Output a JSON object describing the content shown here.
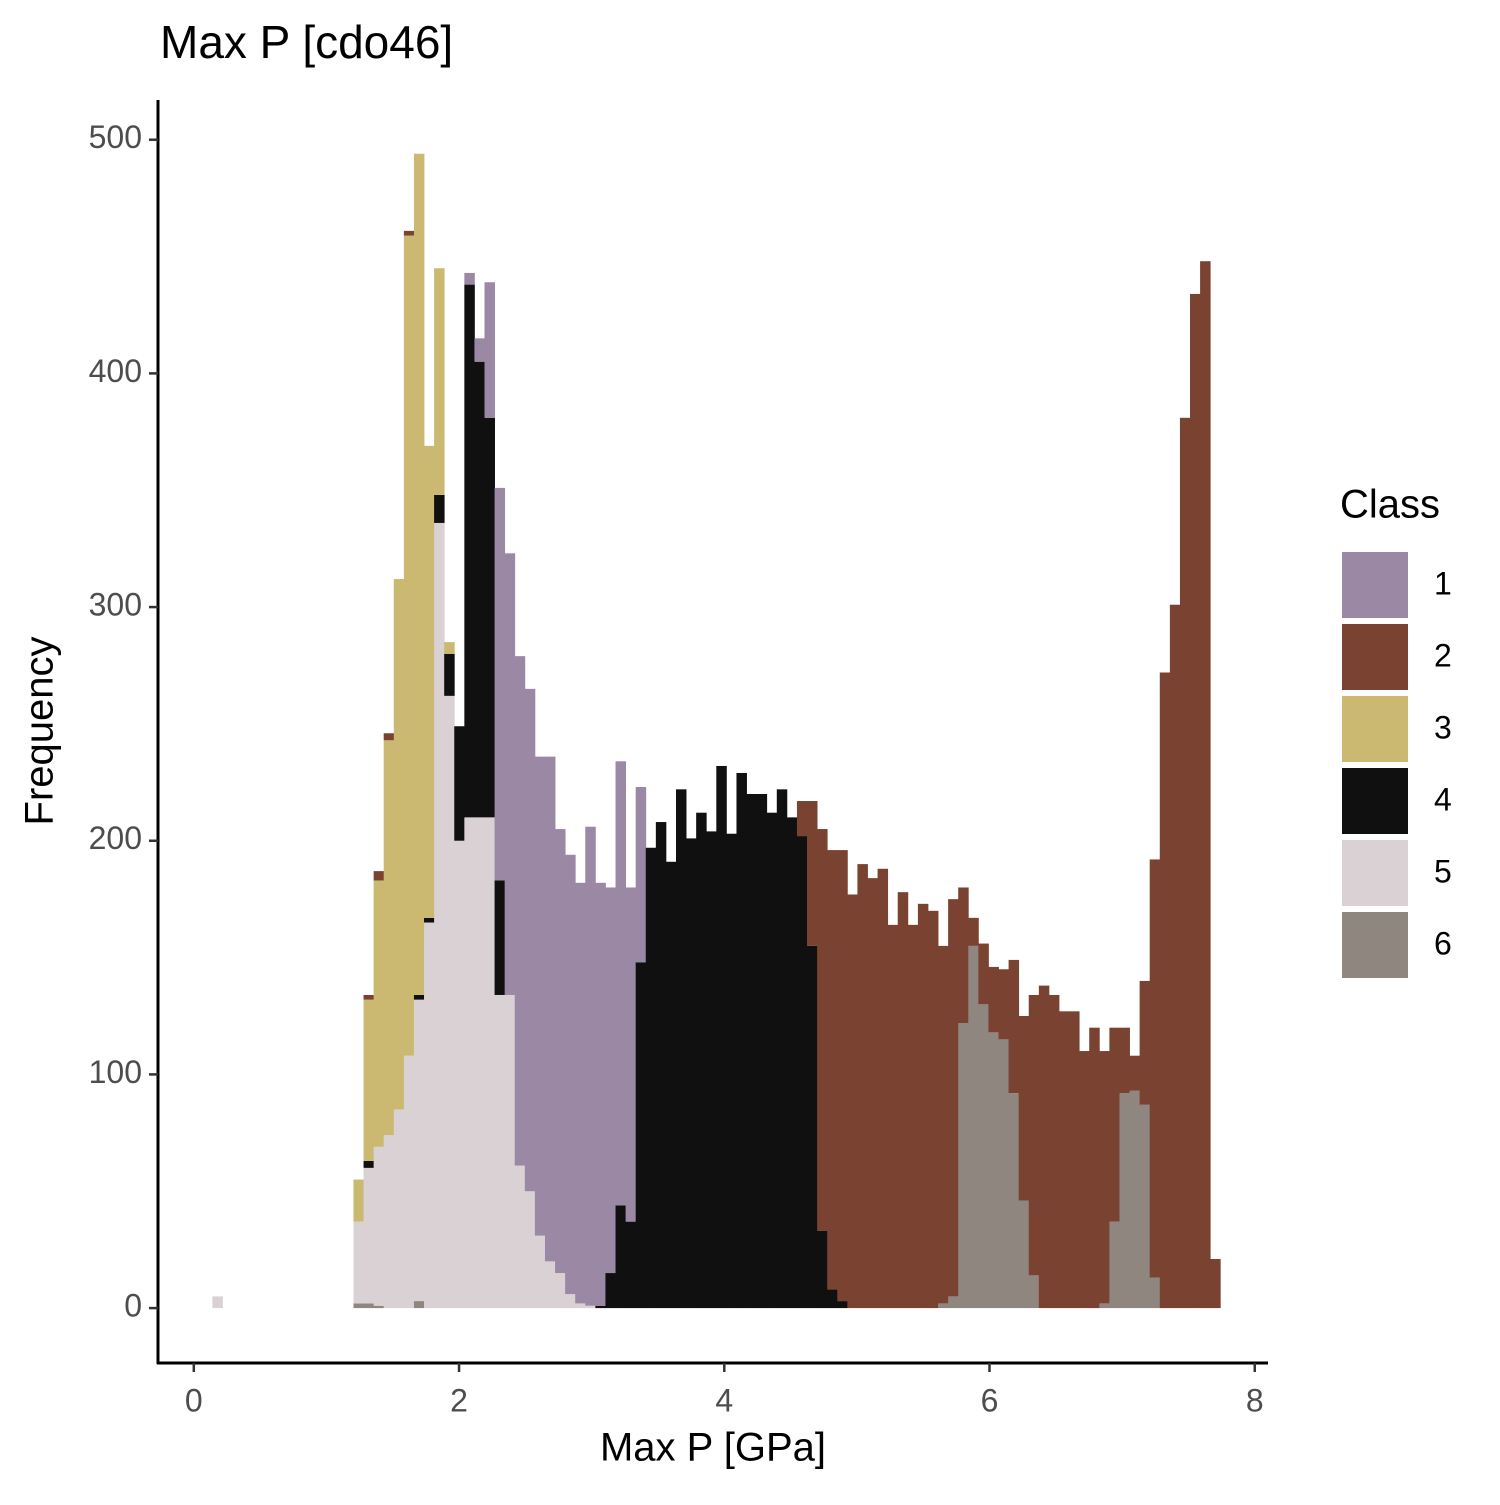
{
  "chart_data": {
    "type": "histogram",
    "title": "Max P [cdo46]",
    "x_label": "Max P [GPa]",
    "y_label": "Frequency",
    "legend_title": "Class",
    "stacked": true,
    "legend_position": "right",
    "bins": [
      0.14,
      0.216,
      0.292,
      0.368,
      0.444,
      0.52,
      0.596,
      0.672,
      0.748,
      0.824,
      0.9,
      0.976,
      1.052,
      1.128,
      1.204,
      1.28,
      1.356,
      1.432,
      1.508,
      1.584,
      1.66,
      1.736,
      1.812,
      1.888,
      1.964,
      2.04,
      2.116,
      2.192,
      2.268,
      2.344,
      2.42,
      2.496,
      2.572,
      2.648,
      2.724,
      2.8,
      2.876,
      2.952,
      3.028,
      3.104,
      3.18,
      3.256,
      3.332,
      3.408,
      3.484,
      3.56,
      3.636,
      3.712,
      3.788,
      3.864,
      3.94,
      4.016,
      4.092,
      4.168,
      4.244,
      4.32,
      4.396,
      4.472,
      4.548,
      4.624,
      4.7,
      4.776,
      4.852,
      4.928,
      5.004,
      5.08,
      5.156,
      5.232,
      5.308,
      5.384,
      5.46,
      5.536,
      5.612,
      5.688,
      5.764,
      5.84,
      5.916,
      5.992,
      6.068,
      6.144,
      6.22,
      6.296,
      6.372,
      6.448,
      6.524,
      6.6,
      6.676,
      6.752,
      6.828,
      6.904,
      6.98,
      7.056,
      7.132,
      7.208,
      7.284,
      7.36,
      7.436,
      7.512,
      7.588,
      7.664,
      7.74
    ],
    "series": [
      {
        "name": "1",
        "color": "#9a88a5",
        "values": [
          0,
          0,
          0,
          0,
          0,
          0,
          0,
          0,
          0,
          0,
          0,
          0,
          0,
          0,
          0,
          0,
          0,
          0,
          0,
          0,
          0,
          0,
          0,
          0,
          0,
          5,
          10,
          58,
          168,
          189,
          218,
          215,
          205,
          216,
          190,
          188,
          180,
          205,
          181,
          165,
          190,
          143,
          75,
          0,
          0,
          0,
          0,
          0,
          0,
          0,
          0,
          0,
          0,
          0,
          0,
          0,
          0,
          0,
          0,
          0,
          0,
          0,
          0,
          0,
          0,
          0,
          0,
          0,
          0,
          0,
          0,
          0,
          0,
          0,
          0,
          0,
          0,
          0,
          0,
          0,
          0,
          0,
          0,
          0,
          0,
          0,
          0,
          0,
          0,
          0,
          0,
          0,
          0,
          0,
          0,
          0,
          0,
          0,
          0,
          0
        ]
      },
      {
        "name": "2",
        "color": "#7a4230",
        "values": [
          0,
          0,
          0,
          0,
          0,
          0,
          0,
          0,
          0,
          0,
          0,
          0,
          0,
          0,
          0,
          2,
          4,
          3,
          0,
          2,
          0,
          0,
          0,
          0,
          0,
          0,
          0,
          0,
          0,
          0,
          0,
          0,
          0,
          0,
          0,
          0,
          0,
          0,
          0,
          0,
          0,
          0,
          0,
          0,
          0,
          0,
          0,
          0,
          0,
          0,
          0,
          0,
          0,
          0,
          0,
          0,
          0,
          0,
          15,
          62,
          172,
          188,
          193,
          177,
          190,
          184,
          188,
          164,
          178,
          164,
          173,
          170,
          153,
          170,
          58,
          12,
          26,
          28,
          30,
          57,
          79,
          120,
          138,
          134,
          127,
          127,
          110,
          120,
          108,
          83,
          28,
          15,
          53,
          179,
          272,
          301,
          381,
          434,
          448,
          21
        ]
      },
      {
        "name": "3",
        "color": "#cbb971",
        "values": [
          0,
          0,
          0,
          0,
          0,
          0,
          0,
          0,
          0,
          0,
          0,
          0,
          0,
          0,
          18,
          69,
          114,
          169,
          227,
          351,
          360,
          202,
          97,
          5,
          0,
          0,
          0,
          0,
          0,
          0,
          0,
          0,
          0,
          0,
          0,
          0,
          0,
          0,
          0,
          0,
          0,
          0,
          0,
          0,
          0,
          0,
          0,
          0,
          0,
          0,
          0,
          0,
          0,
          0,
          0,
          0,
          0,
          0,
          0,
          0,
          0,
          0,
          0,
          0,
          0,
          0,
          0,
          0,
          0,
          0,
          0,
          0,
          0,
          0,
          0,
          0,
          0,
          0,
          0,
          0,
          0,
          0,
          0,
          0,
          0,
          0,
          0,
          0,
          0,
          0,
          0,
          0,
          0,
          0,
          0,
          0,
          0,
          0,
          0,
          0
        ]
      },
      {
        "name": "4",
        "color": "#111011",
        "values": [
          0,
          0,
          0,
          0,
          0,
          0,
          0,
          0,
          0,
          0,
          0,
          0,
          0,
          0,
          0,
          3,
          0,
          0,
          0,
          0,
          2,
          2,
          12,
          18,
          49,
          228,
          195,
          171,
          49,
          0,
          0,
          0,
          0,
          0,
          0,
          0,
          0,
          0,
          1,
          15,
          44,
          37,
          148,
          197,
          208,
          191,
          222,
          201,
          212,
          204,
          232,
          203,
          229,
          220,
          220,
          212,
          222,
          210,
          202,
          155,
          33,
          8,
          3,
          0,
          0,
          0,
          0,
          0,
          0,
          0,
          0,
          0,
          0,
          0,
          0,
          0,
          0,
          0,
          0,
          0,
          0,
          0,
          0,
          0,
          0,
          0,
          0,
          0,
          0,
          0,
          0,
          0,
          0,
          0,
          0,
          0,
          0,
          0,
          0,
          0
        ]
      },
      {
        "name": "5",
        "color": "#d9d1d4",
        "values": [
          5,
          0,
          0,
          0,
          0,
          0,
          0,
          0,
          0,
          0,
          0,
          0,
          0,
          0,
          35,
          58,
          68,
          74,
          85,
          108,
          129,
          165,
          336,
          262,
          200,
          210,
          210,
          210,
          134,
          134,
          61,
          50,
          31,
          20,
          15,
          6,
          2,
          1,
          0,
          0,
          0,
          0,
          0,
          0,
          0,
          0,
          0,
          0,
          0,
          0,
          0,
          0,
          0,
          0,
          0,
          0,
          0,
          0,
          0,
          0,
          0,
          0,
          0,
          0,
          0,
          0,
          0,
          0,
          0,
          0,
          0,
          0,
          0,
          0,
          0,
          0,
          0,
          0,
          0,
          0,
          0,
          0,
          0,
          0,
          0,
          0,
          0,
          0,
          0,
          0,
          0,
          0,
          0,
          0,
          0,
          0,
          0,
          0,
          0,
          0
        ]
      },
      {
        "name": "6",
        "color": "#8f8680",
        "values": [
          0,
          0,
          0,
          0,
          0,
          0,
          0,
          0,
          0,
          0,
          0,
          0,
          0,
          0,
          2,
          2,
          1,
          0,
          0,
          0,
          3,
          0,
          0,
          0,
          0,
          0,
          0,
          0,
          0,
          0,
          0,
          0,
          0,
          0,
          0,
          0,
          0,
          0,
          0,
          0,
          0,
          0,
          0,
          0,
          0,
          0,
          0,
          0,
          0,
          0,
          0,
          0,
          0,
          0,
          0,
          0,
          0,
          0,
          0,
          0,
          0,
          0,
          0,
          0,
          0,
          0,
          0,
          0,
          0,
          0,
          0,
          0,
          2,
          5,
          122,
          155,
          130,
          118,
          115,
          92,
          46,
          14,
          0,
          0,
          0,
          0,
          0,
          0,
          2,
          37,
          92,
          93,
          87,
          13,
          0,
          0,
          0,
          0,
          0,
          0
        ]
      }
    ],
    "xlim": [
      -0.27,
      8.1
    ],
    "ylim": [
      -23.5,
      517
    ],
    "xticks": [
      0,
      2,
      4,
      6,
      8
    ],
    "yticks": [
      0,
      100,
      200,
      300,
      400,
      500
    ],
    "grid": false
  }
}
